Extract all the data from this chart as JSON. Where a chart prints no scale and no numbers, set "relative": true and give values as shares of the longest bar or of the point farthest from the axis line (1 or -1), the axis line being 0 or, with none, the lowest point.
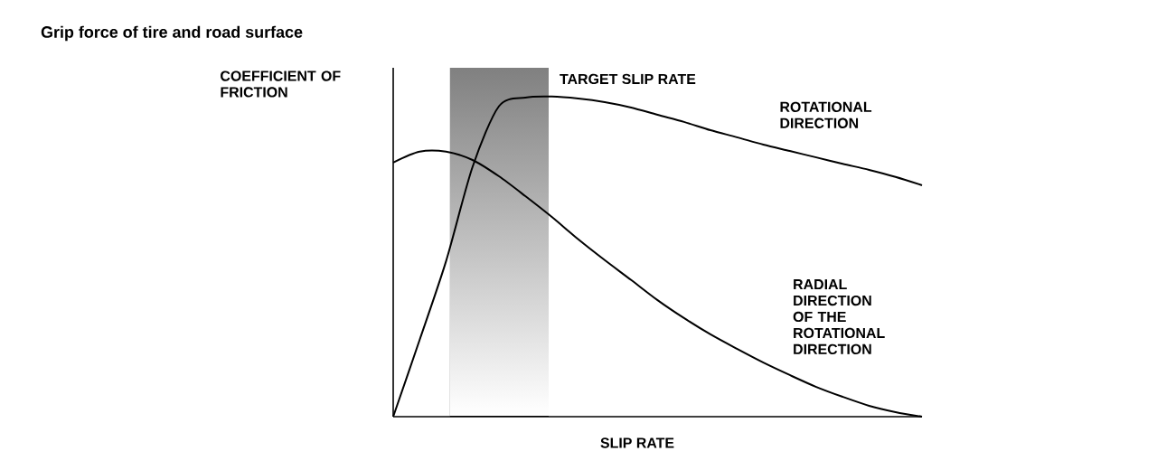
{
  "chart_data": {
    "type": "line",
    "title": "Grip force of tire and road surface",
    "xlabel": "SLIP RATE",
    "ylabel": "COEFFICIENT OF FRICTION",
    "relative": true,
    "annotations": [
      "TARGET SLIP RATE"
    ],
    "categories": [
      null,
      null,
      null,
      null,
      null,
      null,
      null,
      null,
      null,
      null,
      null,
      null,
      null,
      null,
      null,
      null,
      null,
      null,
      null,
      null,
      null
    ],
    "series": [
      {
        "name": "ROTATIONAL DIRECTION",
        "color": "#000000",
        "values": [
          0,
          0.24,
          0.486,
          0.78,
          0.97,
          0.997,
          1.0,
          0.994,
          0.983,
          0.966,
          0.943,
          0.921,
          0.895,
          0.873,
          0.85,
          0.83,
          0.81,
          0.79,
          0.771,
          0.749,
          0.723
        ]
      },
      {
        "name": "RADIAL DIRECTION OF THE ROTATIONAL DIRECTION",
        "color": "#000000",
        "values": [
          0.794,
          0.828,
          0.828,
          0.802,
          0.751,
          0.689,
          0.624,
          0.554,
          0.489,
          0.427,
          0.364,
          0.308,
          0.257,
          0.212,
          0.169,
          0.13,
          0.093,
          0.062,
          0.034,
          0.014,
          0
        ]
      }
    ]
  }
}
